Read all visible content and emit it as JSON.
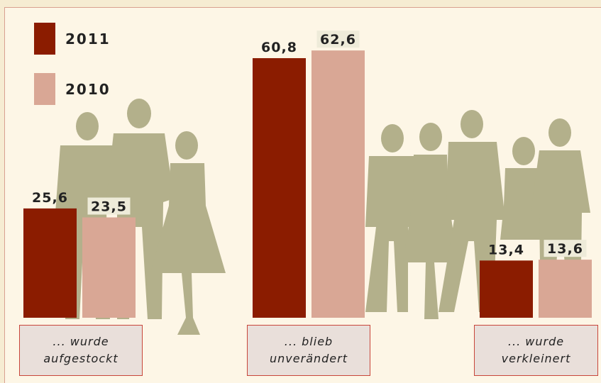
{
  "chart_data": {
    "type": "bar",
    "categories": [
      "... wurde aufgestockt",
      "... blieb unverändert",
      "... wurde verkleinert"
    ],
    "series": [
      {
        "name": "2011",
        "color": "#8b1c00",
        "values": [
          25.6,
          60.8,
          13.4
        ],
        "value_labels": [
          "25,6",
          "60,8",
          "13,4"
        ]
      },
      {
        "name": "2010",
        "color": "#d9a795",
        "values": [
          23.5,
          62.6,
          13.6
        ],
        "value_labels": [
          "23,5",
          "62,6",
          "13,6"
        ]
      }
    ]
  }
}
